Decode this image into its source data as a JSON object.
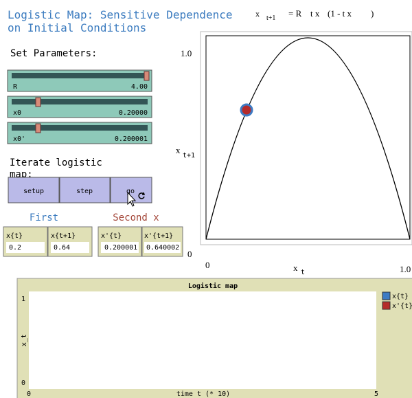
{
  "title": [
    "Logistic Map: Sensitive Dependence",
    "on Initial Conditions"
  ],
  "set_parameters": "Set Parameters:",
  "sliders": [
    {
      "name": "R",
      "value": "4.00"
    },
    {
      "name": "x0",
      "value": "0.20000"
    },
    {
      "name": "x0'",
      "value": "0.200001"
    }
  ],
  "iterate_label": [
    "Iterate logistic",
    "map:"
  ],
  "buttons": [
    "setup",
    "step",
    "go"
  ],
  "first_label": "First",
  "second_label": "Second x",
  "monitors": [
    {
      "label": "x{t}",
      "value": "0.2"
    },
    {
      "label": "x{t+1}",
      "value": "0.64"
    },
    {
      "label": "x'{t}",
      "value": "0.200001"
    },
    {
      "label": "x'{t+1}",
      "value": "0.640002"
    }
  ],
  "map_plot": {
    "equation": [
      "x",
      "t+1",
      "= R",
      "t x",
      "(1 - t x",
      ")"
    ],
    "y_max": "1.0",
    "y_min": "0",
    "x_min": "0",
    "x_max": "1.0",
    "y_label": [
      "x",
      "t+1"
    ],
    "x_label": [
      "x",
      "t"
    ]
  },
  "time_plot": {
    "title": "Logistic map",
    "y_label": "x_t",
    "x_label": "time t (* 10)",
    "y_ticks": [
      "1",
      "0"
    ],
    "x_ticks": [
      "0",
      "5"
    ],
    "legend": [
      {
        "name": "x{t}",
        "color": "#3d7bc4"
      },
      {
        "name": "x'{t}",
        "color": "#b52b2b"
      }
    ]
  }
}
